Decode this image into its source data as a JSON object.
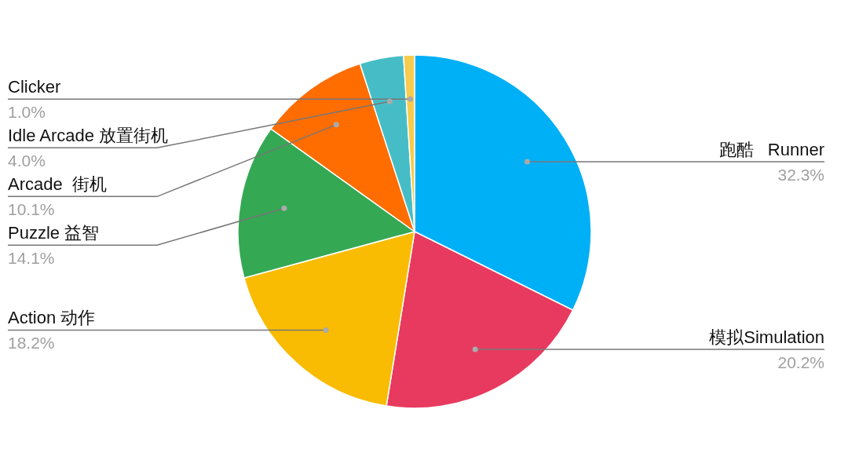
{
  "chart_data": {
    "type": "pie",
    "categories": [
      "跑酷   Runner",
      "模拟Simulation",
      "Action 动作",
      "Puzzle 益智",
      "Arcade  街机",
      "Idle Arcade 放置街机",
      "Clicker"
    ],
    "values": [
      32.3,
      20.2,
      18.2,
      14.1,
      10.1,
      4.0,
      1.0
    ],
    "value_labels": [
      "32.3%",
      "20.2%",
      "18.2%",
      "14.1%",
      "10.1%",
      "4.0%",
      "1.0%"
    ],
    "colors": [
      "#00b0f6",
      "#e83a5f",
      "#f9bc02",
      "#34a853",
      "#ff6d01",
      "#46bdc6",
      "#f7cb4d"
    ]
  }
}
